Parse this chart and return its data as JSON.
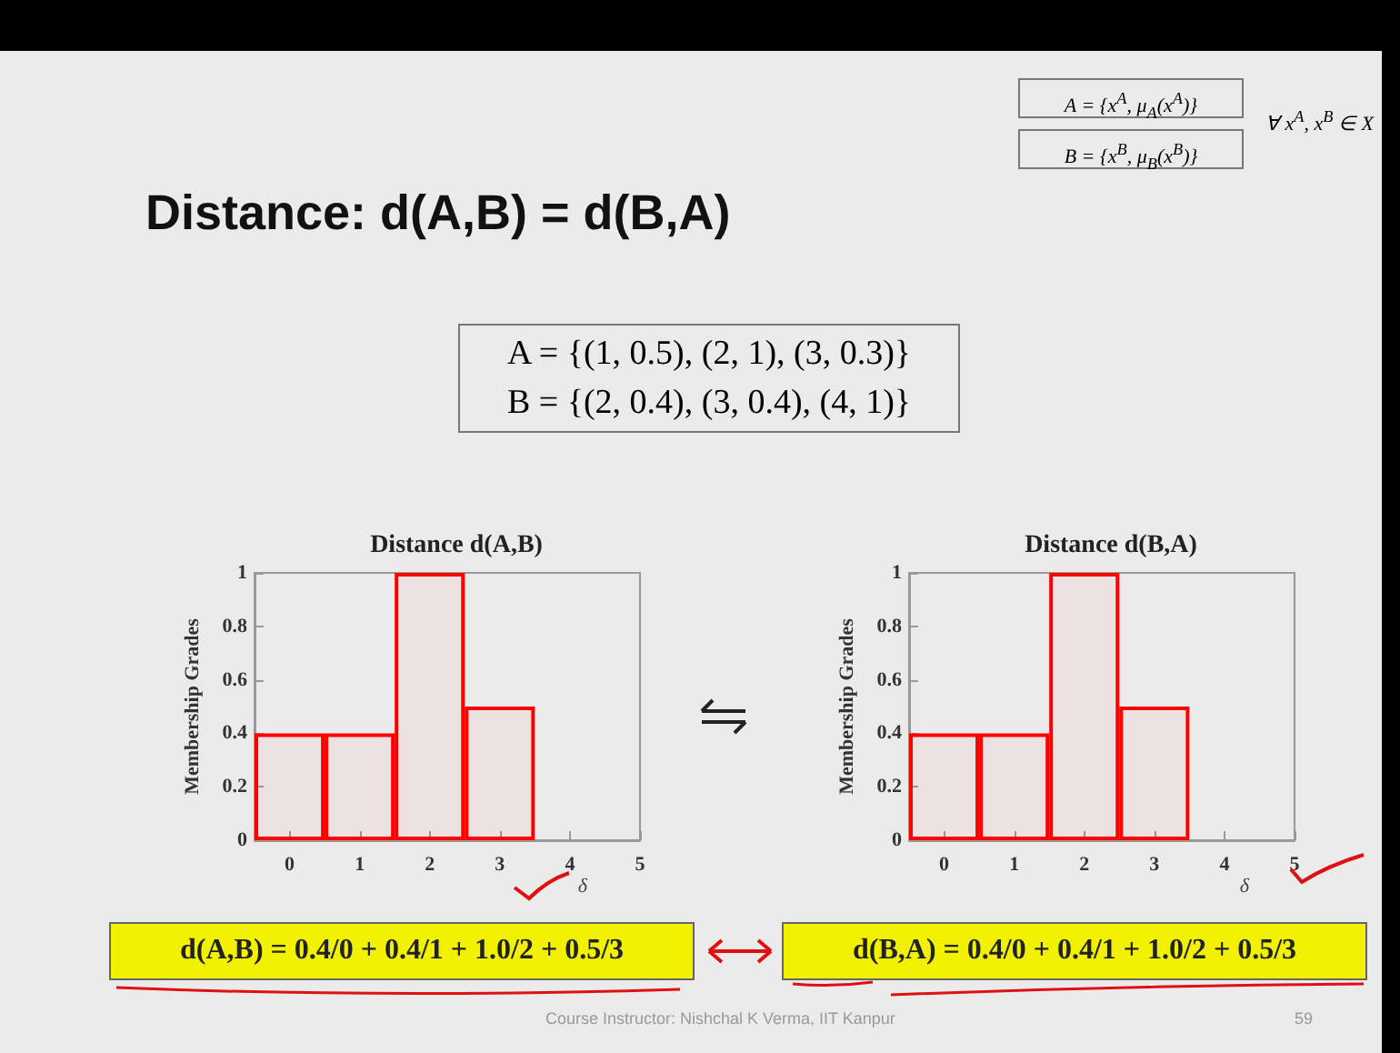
{
  "chart_data": [
    {
      "type": "bar",
      "title": "Distance d(A,B)",
      "xlabel": "δ",
      "ylabel": "Membership Grades",
      "x": [
        0,
        1,
        2,
        3
      ],
      "values": [
        0.4,
        0.4,
        1,
        0.5
      ],
      "color": "#ff0000",
      "xlim": [
        -0.5,
        5
      ],
      "xticks": [
        0,
        1,
        2,
        3,
        4,
        5
      ],
      "ylim": [
        0,
        1
      ],
      "yticks": [
        0,
        0.2,
        0.4,
        0.6,
        0.8,
        1
      ],
      "annotations": [
        "Distance: d(A,B) = d(B,A)",
        "A = {(1, 0.5), (2, 1), (3, 0.3)}",
        "B = {(2, 0.4), (3, 0.4), (4, 1)}",
        "A = {x$^{A}$, μ$_{A}$(x$^{A}$)}",
        "B = {x$^{B}$, μ$_{B}$(x$^{B}$)}",
        "∀ x$^{A}$, x$^{B}$ ∈ X",
        "d(A,B) = 0.4/0 + 0.4/1 + 1.0/2 + 0.5/3",
        "Course Instructor: Nishchal K Verma, IIT Kanpur",
        "59"
      ]
    },
    {
      "type": "bar",
      "title": "Distance d(B,A)",
      "xlabel": "δ",
      "ylabel": "Membership Grades",
      "x": [
        0,
        1,
        2,
        3
      ],
      "values": [
        0.4,
        0.4,
        1,
        0.5
      ],
      "color": "#ff0000",
      "xlim": [
        -0.5,
        5
      ],
      "xticks": [
        0,
        1,
        2,
        3,
        4,
        5
      ],
      "ylim": [
        0,
        1
      ],
      "yticks": [
        0,
        0.2,
        0.4,
        0.6,
        0.8,
        1
      ],
      "annotations": [
        "d(B,A) = 0.4/0 + 0.4/1 + 1.0/2 + 0.5/3"
      ]
    }
  ]
}
